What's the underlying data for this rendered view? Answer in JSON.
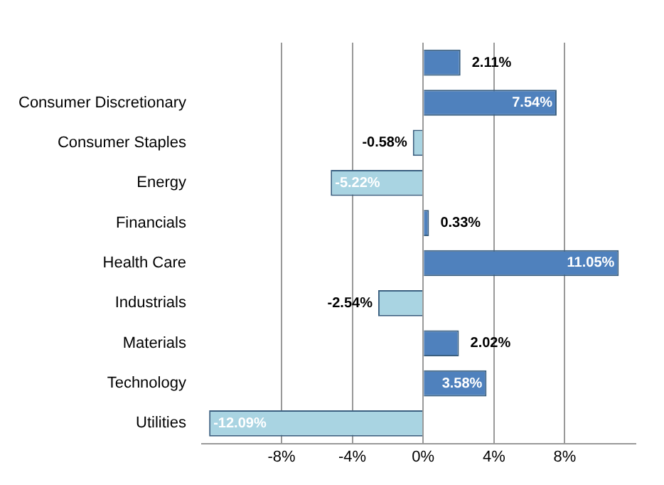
{
  "chart_data": {
    "type": "bar",
    "orientation": "horizontal",
    "categories": [
      null,
      "Consumer Discretionary",
      "Consumer Staples",
      "Energy",
      "Financials",
      "Health Care",
      "Industrials",
      "Materials",
      "Technology",
      "Utilities"
    ],
    "values": [
      2.11,
      7.54,
      -0.58,
      -5.22,
      0.33,
      11.05,
      -2.54,
      2.02,
      3.58,
      -12.09
    ],
    "colors": [
      "#4f81bd",
      "#4f81bd",
      "#a9d4e2",
      "#a9d4e2",
      "#4f81bd",
      "#4f81bd",
      "#a9d4e2",
      "#4f81bd",
      "#4f81bd",
      "#a9d4e2"
    ],
    "value_labels": [
      "2.11%",
      "7.54%",
      "-0.58%",
      "-5.22%",
      "0.33%",
      "11.05%",
      "-2.54%",
      "2.02%",
      "3.58%",
      "-12.09%"
    ],
    "xlim": [
      -12.5,
      12
    ],
    "xticks": [
      {
        "value": -8,
        "label": "-8%"
      },
      {
        "value": -4,
        "label": "-4%"
      },
      {
        "value": 0,
        "label": "0%"
      },
      {
        "value": 4,
        "label": "4%"
      },
      {
        "value": 8,
        "label": "8%"
      }
    ],
    "grid": "x"
  }
}
